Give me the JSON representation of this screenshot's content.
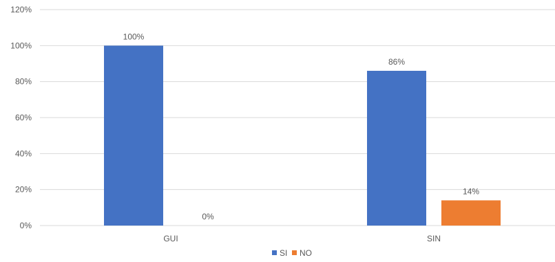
{
  "chart_data": {
    "type": "bar",
    "categories": [
      "GUI",
      "SIN"
    ],
    "series": [
      {
        "name": "SI",
        "values": [
          100,
          86
        ],
        "labels": [
          "100%",
          "86%"
        ],
        "color": "#4472C4"
      },
      {
        "name": "NO",
        "values": [
          0,
          14
        ],
        "labels": [
          "0%",
          "14%"
        ],
        "color": "#ED7D31"
      }
    ],
    "ylim": [
      0,
      120
    ],
    "yticks": [
      0,
      20,
      40,
      60,
      80,
      100,
      120
    ],
    "ytick_labels": [
      "0%",
      "20%",
      "40%",
      "60%",
      "80%",
      "100%",
      "120%"
    ],
    "grid": true,
    "legend_position": "bottom",
    "gridline_color": "#D9D9D9",
    "text_color": "#595959"
  }
}
